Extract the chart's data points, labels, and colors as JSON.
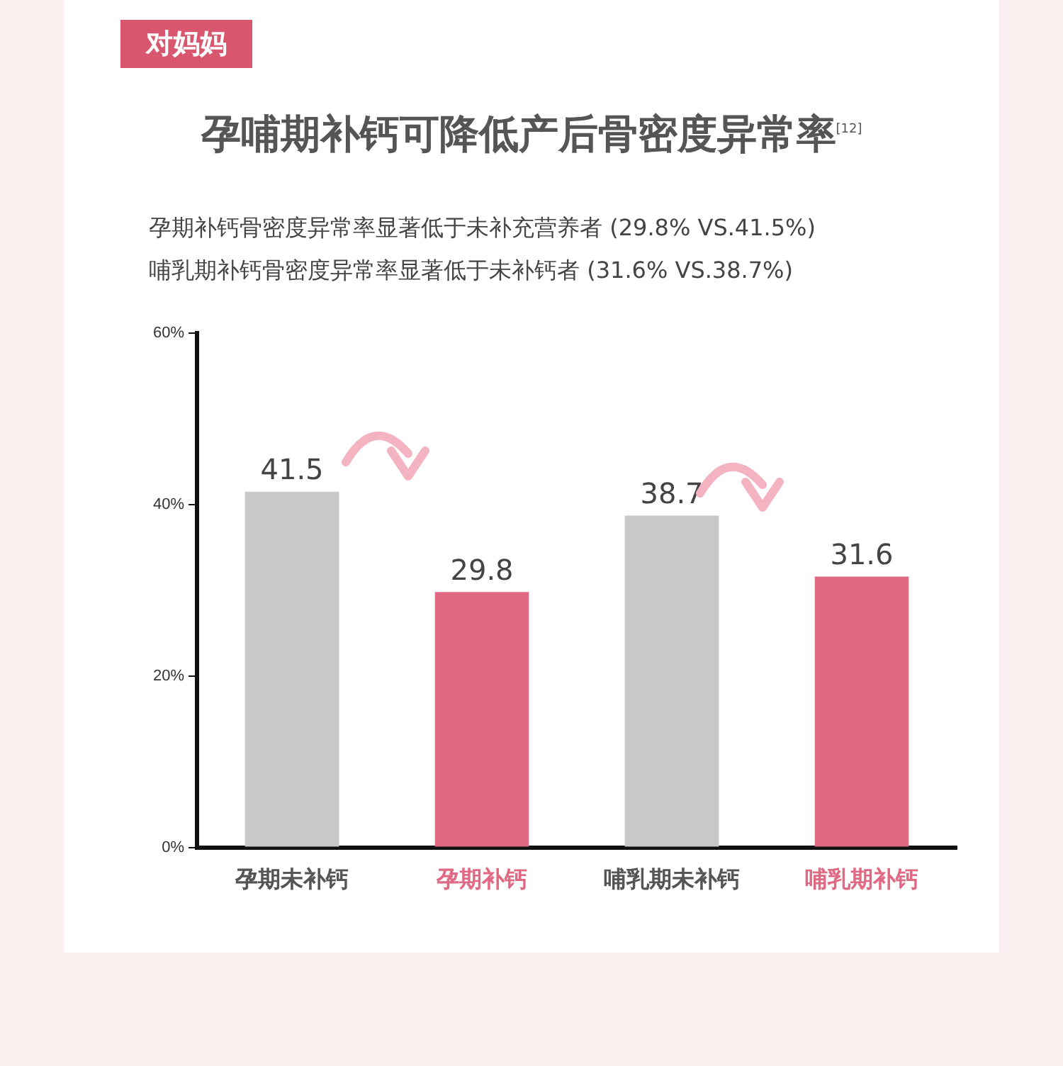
{
  "chart_data": {
    "type": "bar",
    "title": "孕哺期补钙可降低产后骨密度异常率$^{[12]}$",
    "subtitle": "孕期补钙骨密度异常率显著低于未补充营养者 (29.8% VS.41.5%)\n哺乳期补钙骨密度异常率显著低于未补钙者 (31.6% VS.38.7%)",
    "annotations": [
      "对妈妈"
    ],
    "categories": [
      "孕期未补钙",
      "孕期补钙",
      "哺乳期未补钙",
      "哺乳期补钙"
    ],
    "values": [
      41.5,
      29.8,
      38.7,
      31.6
    ],
    "colors": [
      "#c8c8c8",
      "#e06a84",
      "#c8c8c8",
      "#e06a84"
    ],
    "ylim": [
      0,
      60
    ],
    "yticks": [
      {
        "value": 0,
        "label": "0%"
      },
      {
        "value": 20,
        "label": "20%"
      },
      {
        "value": 40,
        "label": "40%"
      },
      {
        "value": 60,
        "label": "60%"
      }
    ],
    "grid": false,
    "legend": false,
    "data_labels": true
  }
}
